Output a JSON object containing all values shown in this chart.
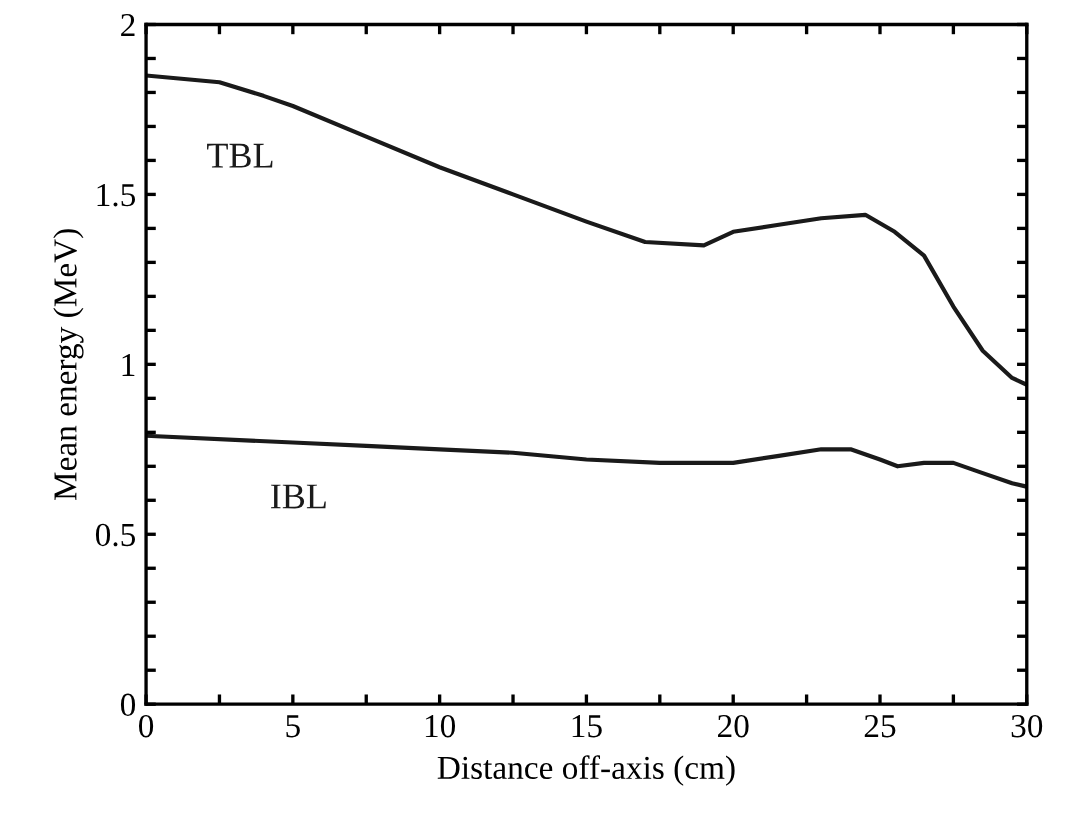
{
  "chart_data": {
    "type": "line",
    "xlabel": "Distance off-axis (cm)",
    "ylabel": "Mean energy (MeV)",
    "xlim": [
      0,
      30
    ],
    "ylim": [
      0,
      2
    ],
    "xticks": [
      0,
      {
        "value": 2.5,
        "label": null
      },
      5,
      {
        "value": 7.5,
        "label": null
      },
      10,
      {
        "value": 12.5,
        "label": null
      },
      15,
      {
        "value": 17.5,
        "label": null
      },
      20,
      {
        "value": 22.5,
        "label": null
      },
      25,
      {
        "value": 27.5,
        "label": null
      },
      30
    ],
    "yticks": [
      0,
      {
        "value": 0.1,
        "label": null
      },
      {
        "value": 0.2,
        "label": null
      },
      {
        "value": 0.3,
        "label": null
      },
      {
        "value": 0.4,
        "label": null
      },
      0.5,
      {
        "value": 0.6,
        "label": null
      },
      {
        "value": 0.7,
        "label": null
      },
      {
        "value": 0.8,
        "label": null
      },
      {
        "value": 0.9,
        "label": null
      },
      1,
      {
        "value": 1.1,
        "label": null
      },
      {
        "value": 1.2,
        "label": null
      },
      {
        "value": 1.3,
        "label": null
      },
      {
        "value": 1.4,
        "label": null
      },
      1.5,
      {
        "value": 1.6,
        "label": null
      },
      {
        "value": 1.7,
        "label": null
      },
      {
        "value": 1.8,
        "label": null
      },
      {
        "value": 1.9,
        "label": null
      },
      2
    ],
    "grid": false,
    "marker": "none",
    "line_style": "solid",
    "series": [
      {
        "name": "TBL",
        "color": "#1a1a1a",
        "x": [
          0,
          2.5,
          4,
          5,
          7.5,
          10,
          12.5,
          15,
          17,
          19,
          20,
          21.5,
          23,
          24.5,
          25.5,
          26.5,
          27.5,
          28.5,
          29.5,
          30
        ],
        "values": [
          1.85,
          1.83,
          1.79,
          1.76,
          1.67,
          1.58,
          1.5,
          1.42,
          1.36,
          1.35,
          1.39,
          1.41,
          1.43,
          1.44,
          1.39,
          1.32,
          1.17,
          1.04,
          0.96,
          0.94
        ]
      },
      {
        "name": "IBL",
        "color": "#1a1a1a",
        "x": [
          0,
          5,
          7.5,
          10,
          12.5,
          15,
          17.5,
          20,
          21.5,
          23,
          24,
          25,
          25.6,
          26.5,
          27.5,
          28.5,
          29.5,
          30
        ],
        "values": [
          0.79,
          0.77,
          0.76,
          0.75,
          0.74,
          0.72,
          0.71,
          0.71,
          0.73,
          0.75,
          0.75,
          0.72,
          0.7,
          0.71,
          0.71,
          0.68,
          0.65,
          0.64
        ]
      }
    ]
  }
}
